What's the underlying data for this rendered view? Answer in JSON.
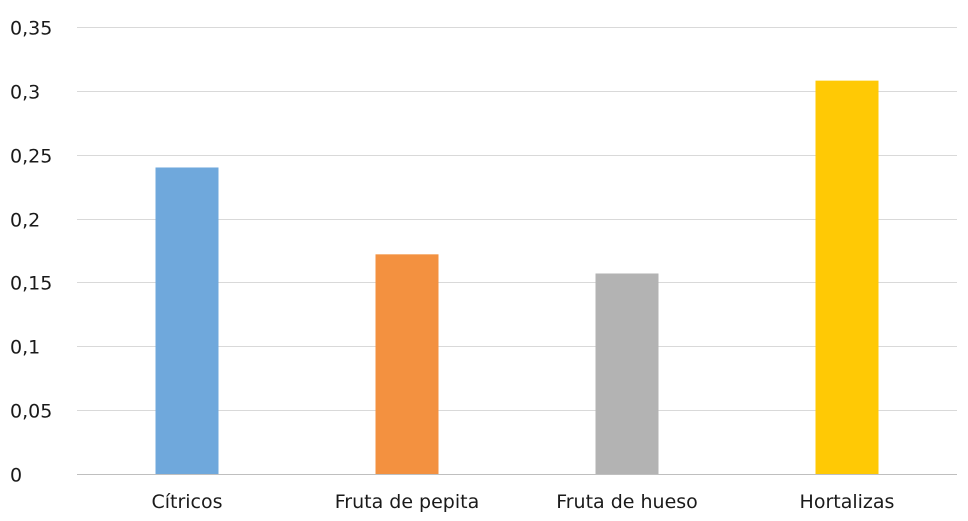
{
  "chart_data": {
    "type": "bar",
    "title": "",
    "xlabel": "",
    "ylabel": "",
    "categories": [
      "Cítricos",
      "Fruta de pepita",
      "Fruta de hueso",
      "Hortalizas"
    ],
    "values": [
      0.24,
      0.172,
      0.157,
      0.308
    ],
    "colors": [
      "#6fa8dc",
      "#f39140",
      "#b3b3b3",
      "#ffc905"
    ],
    "ylim": [
      0,
      0.35
    ],
    "yticks": [
      0,
      0.05,
      0.1,
      0.15,
      0.2,
      0.25,
      0.3,
      0.35
    ],
    "ytick_labels": [
      "0",
      "0,05",
      "0,1",
      "0,15",
      "0,2",
      "0,25",
      "0,3",
      "0,35"
    ],
    "grid": true,
    "legend": false
  }
}
